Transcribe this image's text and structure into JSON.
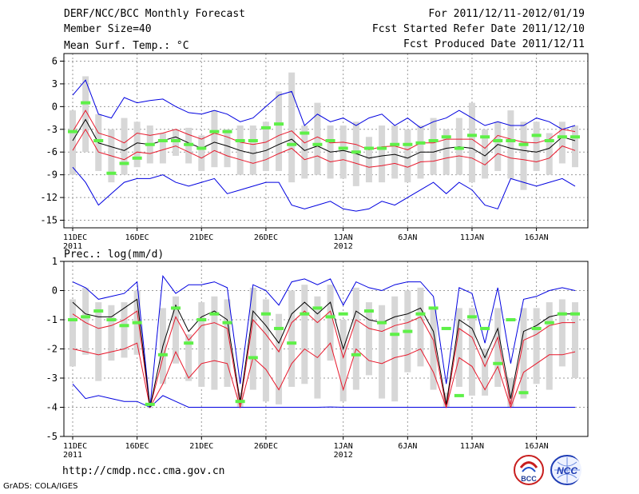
{
  "header": {
    "title": "DERF/NCC/BCC Monthly Forecast",
    "member_size": "Member Size=40",
    "period": "For 2011/12/11-2012/01/19",
    "started": "Fcst Started Refer Date 2011/12/10",
    "produced": "Fcst Produced Date 2011/12/11"
  },
  "footer": {
    "url": "http://cmdp.ncc.cma.gov.cn",
    "grads": "GrADS: COLA/IGES",
    "logo1": "BCC",
    "logo2": "NCC"
  },
  "colors": {
    "mean": "#000000",
    "spread": "#e8192c",
    "extreme": "#0000e0",
    "box": "#d7d7d7",
    "obs": "#5ef048"
  },
  "chart_data": [
    {
      "type": "line",
      "title": "Mean Surf. Temp.: °C",
      "ylim": [
        -16,
        7
      ],
      "yticks": [
        -15,
        -12,
        -9,
        -6,
        -3,
        0,
        3,
        6
      ],
      "xticks": [
        {
          "day": 0,
          "label": "11DEC",
          "sub": "2011"
        },
        {
          "day": 5,
          "label": "16DEC",
          "sub": ""
        },
        {
          "day": 10,
          "label": "21DEC",
          "sub": ""
        },
        {
          "day": 15,
          "label": "26DEC",
          "sub": ""
        },
        {
          "day": 21,
          "label": "1JAN",
          "sub": "2012"
        },
        {
          "day": 26,
          "label": "6JAN",
          "sub": ""
        },
        {
          "day": 31,
          "label": "11JAN",
          "sub": ""
        },
        {
          "day": 36,
          "label": "16JAN",
          "sub": ""
        }
      ],
      "days": 40,
      "series": [
        {
          "name": "mean",
          "values": [
            -4.5,
            -1.7,
            -4.8,
            -5.3,
            -5.8,
            -4.8,
            -5.0,
            -4.5,
            -4.0,
            -4.8,
            -5.5,
            -4.7,
            -5.2,
            -5.8,
            -6.2,
            -5.8,
            -5.0,
            -4.3,
            -5.8,
            -5.2,
            -6.0,
            -5.8,
            -6.2,
            -6.8,
            -6.5,
            -6.3,
            -6.8,
            -6.0,
            -6.0,
            -5.5,
            -5.3,
            -5.5,
            -6.5,
            -5.0,
            -5.5,
            -5.8,
            -6.0,
            -5.5,
            -4.0,
            -4.5
          ]
        },
        {
          "name": "spread_upper",
          "values": [
            -3.3,
            -0.5,
            -3.5,
            -4.0,
            -4.8,
            -3.5,
            -3.8,
            -3.5,
            -3.0,
            -3.7,
            -4.3,
            -3.5,
            -4.0,
            -4.7,
            -5.0,
            -4.7,
            -3.8,
            -3.2,
            -4.8,
            -4.0,
            -4.8,
            -4.7,
            -5.0,
            -5.7,
            -5.3,
            -5.2,
            -5.7,
            -4.8,
            -4.8,
            -4.3,
            -4.3,
            -4.3,
            -5.5,
            -3.8,
            -4.3,
            -4.7,
            -4.8,
            -4.3,
            -3.0,
            -3.3
          ]
        },
        {
          "name": "spread_lower",
          "values": [
            -5.8,
            -3.0,
            -6.0,
            -6.5,
            -7.0,
            -6.0,
            -6.2,
            -5.7,
            -5.2,
            -6.0,
            -6.8,
            -5.8,
            -6.5,
            -7.0,
            -7.5,
            -7.0,
            -6.2,
            -5.5,
            -7.0,
            -6.5,
            -7.3,
            -7.0,
            -7.5,
            -8.0,
            -7.8,
            -7.5,
            -8.0,
            -7.3,
            -7.2,
            -6.8,
            -6.5,
            -6.8,
            -7.7,
            -6.2,
            -6.8,
            -7.0,
            -7.3,
            -6.8,
            -5.2,
            -5.8
          ]
        },
        {
          "name": "max",
          "values": [
            1.5,
            3.5,
            -1.0,
            -1.5,
            1.2,
            0.5,
            0.8,
            1.0,
            0.0,
            -0.8,
            -1.0,
            -0.5,
            -1.0,
            -2.0,
            -1.5,
            0.0,
            1.5,
            2.0,
            -2.5,
            -1.0,
            -2.0,
            -1.5,
            -2.5,
            -1.5,
            -1.0,
            -2.5,
            -1.5,
            -2.8,
            -2.0,
            -1.5,
            -0.5,
            -1.5,
            -2.5,
            -2.0,
            -2.5,
            -2.5,
            -1.5,
            -2.0,
            -3.0,
            -2.5
          ]
        },
        {
          "name": "min",
          "values": [
            -8.0,
            -10.0,
            -13.0,
            -11.5,
            -10.0,
            -9.5,
            -9.5,
            -9.0,
            -10.0,
            -10.5,
            -10.0,
            -9.5,
            -11.5,
            -11.0,
            -10.5,
            -10.0,
            -10.0,
            -13.0,
            -13.5,
            -13.0,
            -12.5,
            -13.5,
            -13.8,
            -13.5,
            -12.5,
            -13.0,
            -12.0,
            -11.0,
            -10.0,
            -11.5,
            -10.0,
            -11.0,
            -13.0,
            -13.5,
            -9.5,
            -10.0,
            -10.5,
            -10.0,
            -9.5,
            -10.5
          ]
        },
        {
          "name": "box_top",
          "values": [
            -0.5,
            4.0,
            -1.0,
            -3.0,
            -1.5,
            -2.0,
            -2.5,
            -3.5,
            -3.0,
            -2.8,
            -3.8,
            -0.5,
            -3.0,
            -2.5,
            -2.5,
            -2.0,
            2.0,
            4.5,
            -2.5,
            0.5,
            -2.5,
            -2.5,
            -2.0,
            -4.0,
            -2.5,
            -2.5,
            -3.0,
            -2.5,
            -1.5,
            -3.0,
            -1.5,
            0.5,
            -3.0,
            -2.0,
            -0.5,
            -2.0,
            -2.0,
            -3.5,
            -2.0,
            -2.5
          ]
        },
        {
          "name": "box_bottom",
          "values": [
            -9.0,
            -6.0,
            -8.5,
            -10.0,
            -9.0,
            -8.0,
            -7.5,
            -7.5,
            -6.5,
            -7.5,
            -8.5,
            -8.0,
            -8.0,
            -9.0,
            -9.0,
            -8.5,
            -8.5,
            -10.0,
            -9.5,
            -9.0,
            -9.5,
            -9.5,
            -10.5,
            -10.0,
            -10.0,
            -9.5,
            -10.0,
            -9.5,
            -9.0,
            -9.0,
            -9.0,
            -10.0,
            -9.5,
            -8.5,
            -9.5,
            -11.0,
            -8.5,
            -9.0,
            -7.5,
            -8.0
          ]
        },
        {
          "name": "obs",
          "values": [
            -3.3,
            0.5,
            -4.5,
            -8.8,
            -7.5,
            -6.8,
            -5.0,
            -4.5,
            -4.5,
            -5.0,
            -5.5,
            -3.3,
            -3.3,
            -4.5,
            -4.5,
            -2.8,
            -2.3,
            -5.0,
            -3.5,
            -5.0,
            -4.5,
            -5.5,
            -6.0,
            -5.5,
            -5.5,
            -5.0,
            -5.0,
            -4.8,
            -4.5,
            -4.0,
            -5.5,
            -3.8,
            -4.0,
            -4.5,
            -4.5,
            -5.0,
            -3.8,
            -4.5,
            -4.0,
            -4.0
          ]
        }
      ]
    },
    {
      "type": "line",
      "title": "Prec.: log(mm/d)",
      "ylim": [
        -5,
        1
      ],
      "yticks": [
        -5,
        -4,
        -3,
        -2,
        -1,
        0,
        1
      ],
      "xticks": [
        {
          "day": 0,
          "label": "11DEC",
          "sub": "2011"
        },
        {
          "day": 5,
          "label": "16DEC",
          "sub": ""
        },
        {
          "day": 10,
          "label": "21DEC",
          "sub": ""
        },
        {
          "day": 15,
          "label": "26DEC",
          "sub": ""
        },
        {
          "day": 21,
          "label": "1JAN",
          "sub": "2012"
        },
        {
          "day": 26,
          "label": "6JAN",
          "sub": ""
        },
        {
          "day": 31,
          "label": "11JAN",
          "sub": ""
        },
        {
          "day": 36,
          "label": "16JAN",
          "sub": ""
        }
      ],
      "days": 40,
      "series": [
        {
          "name": "mean",
          "values": [
            -0.4,
            -0.8,
            -0.9,
            -0.9,
            -0.6,
            -0.3,
            -4.0,
            -1.9,
            -0.5,
            -1.4,
            -0.9,
            -0.7,
            -1.0,
            -3.8,
            -0.7,
            -1.2,
            -1.8,
            -0.8,
            -0.4,
            -0.8,
            -0.4,
            -2.0,
            -0.7,
            -1.0,
            -1.1,
            -0.9,
            -0.8,
            -0.6,
            -1.4,
            -3.9,
            -1.0,
            -1.3,
            -2.3,
            -1.3,
            -3.7,
            -1.4,
            -1.2,
            -0.9,
            -0.8,
            -0.8
          ]
        },
        {
          "name": "spread_upper",
          "values": [
            -0.8,
            -1.1,
            -1.3,
            -1.2,
            -1.0,
            -0.7,
            -4.0,
            -2.3,
            -0.9,
            -1.7,
            -1.2,
            -1.1,
            -1.3,
            -3.9,
            -1.0,
            -1.5,
            -2.1,
            -1.1,
            -0.7,
            -1.1,
            -0.7,
            -2.3,
            -1.0,
            -1.3,
            -1.4,
            -1.2,
            -1.1,
            -0.9,
            -1.7,
            -4.0,
            -1.3,
            -1.6,
            -2.6,
            -1.6,
            -3.9,
            -1.7,
            -1.5,
            -1.2,
            -1.1,
            -1.1
          ]
        },
        {
          "name": "spread_lower",
          "values": [
            -2.0,
            -2.1,
            -2.2,
            -2.1,
            -2.0,
            -1.8,
            -4.0,
            -3.2,
            -2.1,
            -3.0,
            -2.5,
            -2.4,
            -2.5,
            -4.0,
            -2.3,
            -2.7,
            -3.4,
            -2.5,
            -2.0,
            -2.3,
            -1.8,
            -3.4,
            -2.0,
            -2.4,
            -2.5,
            -2.3,
            -2.2,
            -2.0,
            -2.8,
            -4.0,
            -2.3,
            -2.6,
            -3.4,
            -2.6,
            -4.0,
            -2.8,
            -2.5,
            -2.2,
            -2.2,
            -2.1
          ]
        },
        {
          "name": "max",
          "values": [
            0.3,
            0.1,
            -0.3,
            -0.2,
            -0.1,
            0.3,
            -4.0,
            0.5,
            -0.1,
            0.2,
            0.2,
            0.3,
            0.1,
            -3.2,
            0.2,
            0.0,
            -0.5,
            0.3,
            0.4,
            0.2,
            0.4,
            -0.5,
            0.3,
            0.1,
            0.0,
            0.2,
            0.3,
            0.3,
            -0.2,
            -3.2,
            0.1,
            -0.1,
            -1.8,
            0.1,
            -2.5,
            -0.3,
            -0.2,
            0.0,
            0.1,
            0.0
          ]
        },
        {
          "name": "min",
          "values": [
            -3.2,
            -3.7,
            -3.6,
            -3.7,
            -3.8,
            -3.8,
            -4.0,
            -3.6,
            -3.8,
            -4.0,
            -4.0,
            -4.0,
            -4.0,
            -4.0,
            -4.0,
            -4.0,
            -4.0,
            -4.0,
            -4.0,
            -4.0,
            -3.99,
            -4.0,
            -4.0,
            -4.0,
            -4.0,
            -4.0,
            -4.0,
            -4.0,
            -4.0,
            -4.0,
            -4.0,
            -4.0,
            -4.0,
            -4.0,
            -4.0,
            -4.0,
            -4.0,
            -4.0,
            -4.0,
            -4.0
          ]
        },
        {
          "name": "box_top",
          "values": [
            -0.3,
            0.1,
            -0.4,
            -0.5,
            -0.4,
            0.0,
            -4.0,
            -0.6,
            -0.2,
            -1.5,
            -0.4,
            -0.2,
            -0.3,
            -3.5,
            0.1,
            -0.3,
            -0.8,
            0.0,
            0.2,
            -0.2,
            0.2,
            -1.0,
            0.1,
            -0.4,
            -0.5,
            -0.2,
            0.0,
            0.1,
            -0.6,
            -3.5,
            -0.6,
            -0.6,
            -2.0,
            -0.6,
            -3.0,
            -0.6,
            -0.6,
            -0.4,
            -0.3,
            -0.4
          ]
        },
        {
          "name": "box_bottom",
          "values": [
            -2.6,
            -2.2,
            -3.1,
            -2.4,
            -2.3,
            -2.2,
            -4.0,
            -3.2,
            -2.5,
            -3.1,
            -3.3,
            -3.4,
            -3.3,
            -4.0,
            -3.4,
            -3.8,
            -3.9,
            -3.3,
            -3.2,
            -3.7,
            -2.4,
            -3.8,
            -3.4,
            -2.9,
            -3.7,
            -3.8,
            -2.8,
            -2.6,
            -3.4,
            -4.0,
            -3.3,
            -3.6,
            -3.6,
            -3.3,
            -4.0,
            -3.7,
            -3.2,
            -3.4,
            -2.6,
            -3.0
          ]
        },
        {
          "name": "obs",
          "values": [
            -1.0,
            -0.9,
            -0.7,
            -1.0,
            -1.2,
            -1.1,
            -3.9,
            -2.2,
            -0.6,
            -1.8,
            -1.0,
            -0.8,
            -1.1,
            -3.8,
            -2.3,
            -0.8,
            -1.3,
            -1.8,
            -0.8,
            -0.6,
            -0.9,
            -0.8,
            -2.2,
            -0.7,
            -1.1,
            -1.5,
            -1.4,
            -0.8,
            -0.6,
            -1.3,
            -3.6,
            -0.9,
            -1.3,
            -2.5,
            -1.0,
            -3.5,
            -1.3,
            -1.1,
            -0.8,
            -0.8
          ]
        }
      ]
    }
  ]
}
